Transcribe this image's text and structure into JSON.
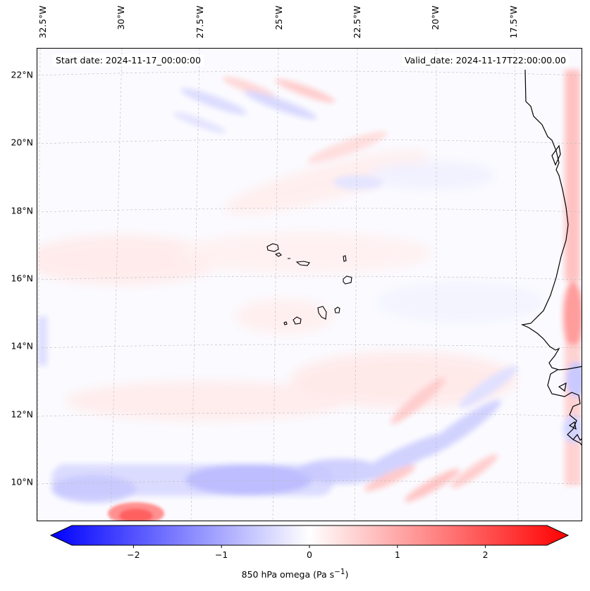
{
  "header": {
    "start_date": "Start date: 2024-11-17_00:00:00",
    "valid_date": "Valid_date: 2024-11-17T22:00:00.00"
  },
  "axes": {
    "lat_labels": [
      "22°N",
      "20°N",
      "18°N",
      "16°N",
      "14°N",
      "12°N",
      "10°N"
    ],
    "lon_labels": [
      "32.5°W",
      "30°W",
      "27.5°W",
      "25°W",
      "22.5°W",
      "20°W",
      "17.5°W"
    ]
  },
  "colorbar": {
    "label_main": "850 hPa omega (Pa s",
    "label_sup": "−1",
    "label_end": ")",
    "ticks": [
      "−2",
      "−1",
      "0",
      "1",
      "2"
    ],
    "min": -2.7,
    "max": 2.7,
    "colors": {
      "low": "#0000ff",
      "mid": "#ffffff",
      "high": "#ff0000"
    }
  },
  "chart_data": {
    "type": "heatmap",
    "title": "",
    "variable": "850 hPa omega (Pa s−1)",
    "lat_range": [
      9,
      22.7
    ],
    "lon_range": [
      -32.5,
      -15.5
    ],
    "lat_ticks": [
      22,
      20,
      18,
      16,
      14,
      12,
      10
    ],
    "lon_ticks": [
      -32.5,
      -30,
      -27.5,
      -25,
      -22.5,
      -20,
      -17.5
    ],
    "color_range": [
      -2.7,
      2.7
    ],
    "colorbar_ticks": [
      -2,
      -1,
      0,
      1,
      2
    ],
    "features": [
      {
        "lat": 9.2,
        "lon": -29.3,
        "value": 2.0
      },
      {
        "lat": 14.8,
        "lon": -15.8,
        "value": 1.2
      },
      {
        "lat": 21.0,
        "lon": -15.9,
        "value": 1.0
      },
      {
        "lat": 10.3,
        "lon": -25.5,
        "value": -0.5
      },
      {
        "lat": 10.1,
        "lon": -30.5,
        "value": -0.4
      },
      {
        "lat": 13.0,
        "lon": -15.7,
        "value": -0.5
      },
      {
        "lat": 11.3,
        "lon": -19.0,
        "value": -0.4
      },
      {
        "lat": 21.5,
        "lon": -26.0,
        "value": -0.3
      },
      {
        "lat": 18.9,
        "lon": -22.5,
        "value": -0.2
      }
    ]
  }
}
